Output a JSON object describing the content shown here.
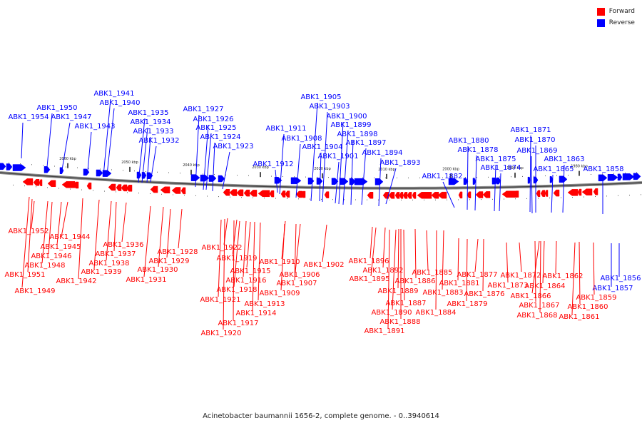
{
  "legend": {
    "forward": {
      "label": "Forward",
      "color": "#ff0000"
    },
    "reverse": {
      "label": "Reverse",
      "color": "#0000ff"
    }
  },
  "caption": "Acinetobacter baumannii 1656-2, complete genome. - 0..3940614",
  "ruler": [
    "2060 kbp",
    "2050 kbp",
    "2040 kbp",
    "2030 kbp",
    "2020 kbp",
    "2010 kbp",
    "2000 kbp",
    "1990 kbp",
    "1980 kbp"
  ],
  "reverse_genes": [
    "ABK1_1954",
    "ABK1_1950",
    "ABK1_1947",
    "ABK1_1943",
    "ABK1_1941",
    "ABK1_1940",
    "ABK1_1935",
    "ABK1_1934",
    "ABK1_1933",
    "ABK1_1932",
    "ABK1_1927",
    "ABK1_1926",
    "ABK1_1925",
    "ABK1_1924",
    "ABK1_1923",
    "ABK1_1912",
    "ABK1_1911",
    "ABK1_1908",
    "ABK1_1905",
    "ABK1_1904",
    "ABK1_1903",
    "ABK1_1901",
    "ABK1_1900",
    "ABK1_1899",
    "ABK1_1898",
    "ABK1_1897",
    "ABK1_1894",
    "ABK1_1893",
    "ABK1_1882",
    "ABK1_1880",
    "ABK1_1878",
    "ABK1_1875",
    "ABK1_1874",
    "ABK1_1871",
    "ABK1_1870",
    "ABK1_1869",
    "ABK1_1865",
    "ABK1_1863",
    "ABK1_1858",
    "ABK1_1856",
    "ABK1_1857"
  ],
  "forward_genes": [
    "ABK1_1952",
    "ABK1_1944",
    "ABK1_1945",
    "ABK1_1946",
    "ABK1_1948",
    "ABK1_1951",
    "ABK1_1949",
    "ABK1_1942",
    "ABK1_1939",
    "ABK1_1938",
    "ABK1_1937",
    "ABK1_1936",
    "ABK1_1931",
    "ABK1_1930",
    "ABK1_1929",
    "ABK1_1928",
    "ABK1_1922",
    "ABK1_1919",
    "ABK1_1915",
    "ABK1_1916",
    "ABK1_1918",
    "ABK1_1921",
    "ABK1_1913",
    "ABK1_1914",
    "ABK1_1917",
    "ABK1_1920",
    "ABK1_1910",
    "ABK1_1906",
    "ABK1_1907",
    "ABK1_1909",
    "ABK1_1902",
    "ABK1_1896",
    "ABK1_1892",
    "ABK1_1895",
    "ABK1_1889",
    "ABK1_1887",
    "ABK1_1890",
    "ABK1_1888",
    "ABK1_1891",
    "ABK1_1885",
    "ABK1_1886",
    "ABK1_1883",
    "ABK1_1884",
    "ABK1_1881",
    "ABK1_1877",
    "ABK1_1879",
    "ABK1_1876",
    "ABK1_1872",
    "ABK1_1873",
    "ABK1_1866",
    "ABK1_1864",
    "ABK1_1867",
    "ABK1_1868",
    "ABK1_1862",
    "ABK1_1859",
    "ABK1_1860",
    "ABK1_1861"
  ]
}
